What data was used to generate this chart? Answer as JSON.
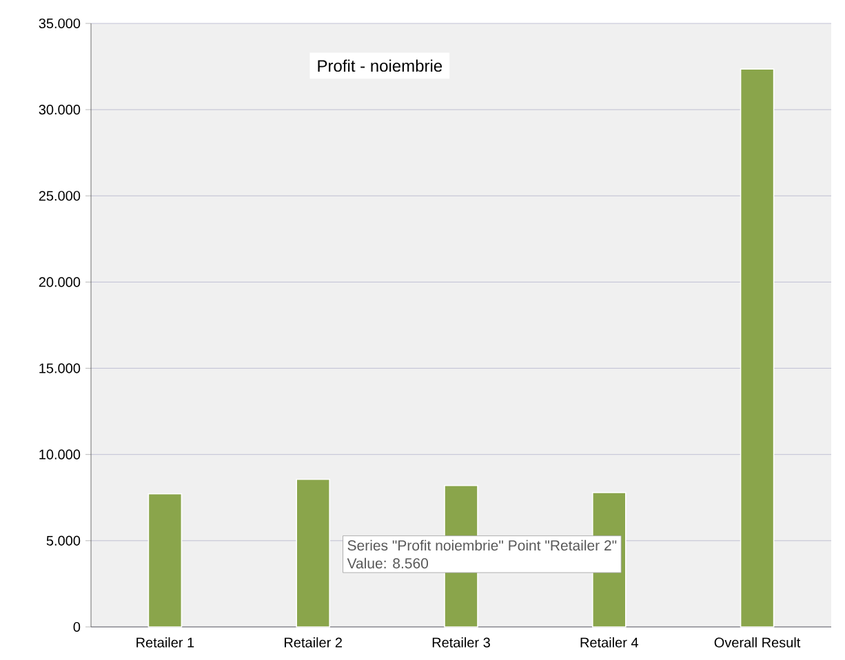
{
  "chart_data": {
    "type": "bar",
    "title": "Profit - noiembrie",
    "categories": [
      "Retailer 1",
      "Retailer 2",
      "Retailer 3",
      "Retailer 4",
      "Overall Result"
    ],
    "values": [
      7720,
      8560,
      8200,
      7790,
      32350
    ],
    "color": "#8aa54b",
    "ylim": [
      0,
      35000
    ],
    "yticks": [
      0,
      {
        "value": 5000,
        "label": "5.000"
      },
      {
        "value": 10000,
        "label": "10.000"
      },
      {
        "value": 15000,
        "label": "15.000"
      },
      {
        "value": 20000,
        "label": "20.000"
      },
      {
        "value": 25000,
        "label": "25.000"
      },
      {
        "value": 30000,
        "label": "30.000"
      },
      {
        "value": 35000,
        "label": "35.000"
      }
    ],
    "grid": "y",
    "annotations": [
      "Series \"Profit noiembrie\" Point \"Retailer 2\"",
      "Value: 8.560"
    ]
  }
}
